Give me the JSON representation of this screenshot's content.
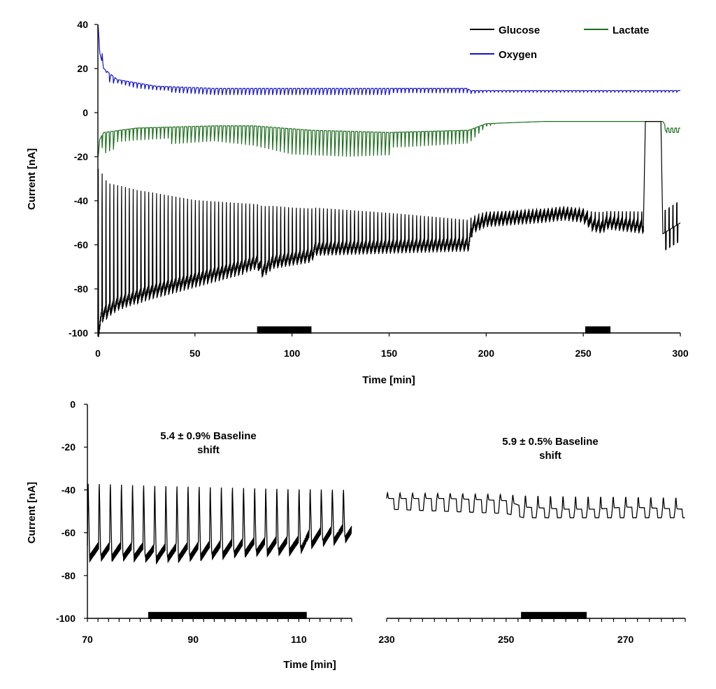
{
  "colors": {
    "glucose": "#000000",
    "lactate": "#1e6e1e",
    "oxygen": "#1414c8",
    "bar": "#000000"
  },
  "chart_data": [
    {
      "type": "line",
      "xlabel": "Time [min]",
      "ylabel": "Current [nA]",
      "xlim": [
        0,
        300
      ],
      "ylim": [
        -100,
        40
      ],
      "xticks": [
        0,
        50,
        100,
        150,
        200,
        250,
        300
      ],
      "yticks": [
        40,
        20,
        0,
        -20,
        -40,
        -60,
        -80,
        -100
      ],
      "legend": "top-right",
      "series": [
        {
          "name": "Glucose",
          "color": "#000000",
          "baseline": [
            [
              0,
              -98
            ],
            [
              2,
              -90
            ],
            [
              10,
              -85
            ],
            [
              25,
              -80
            ],
            [
              50,
              -74
            ],
            [
              75,
              -68
            ],
            [
              82,
              -66
            ],
            [
              85,
              -70
            ],
            [
              90,
              -66
            ],
            [
              110,
              -63
            ],
            [
              112,
              -60
            ],
            [
              150,
              -59
            ],
            [
              191,
              -58
            ],
            [
              193,
              -50
            ],
            [
              200,
              -47
            ],
            [
              230,
              -45
            ],
            [
              240,
              -44
            ],
            [
              250,
              -45
            ],
            [
              255,
              -49
            ],
            [
              260,
              -50
            ],
            [
              262,
              -48
            ],
            [
              281,
              -50
            ]
          ],
          "spike_top": [
            [
              0,
              -10
            ],
            [
              5,
              -20
            ],
            [
              20,
              -25
            ],
            [
              50,
              -32
            ],
            [
              100,
              -38
            ],
            [
              150,
              -42
            ],
            [
              191,
              -46
            ],
            [
              200,
              -44
            ],
            [
              281,
              -43
            ]
          ],
          "spike_period_min": 2.0,
          "spike_end_min": 191,
          "plateau": [
            [
              281,
              -50
            ],
            [
              282,
              -4
            ],
            [
              290,
              -4
            ],
            [
              291,
              -55
            ],
            [
              300,
              -50
            ]
          ]
        },
        {
          "name": "Lactate",
          "color": "#1e6e1e",
          "baseline": [
            [
              0,
              -20
            ],
            [
              1,
              -12
            ],
            [
              3,
              -9
            ],
            [
              20,
              -7
            ],
            [
              60,
              -6
            ],
            [
              80,
              -6
            ],
            [
              110,
              -8
            ],
            [
              150,
              -9
            ],
            [
              191,
              -8
            ],
            [
              200,
              -5
            ],
            [
              230,
              -4
            ],
            [
              280,
              -4
            ],
            [
              291,
              -4
            ],
            [
              293,
              -7
            ],
            [
              300,
              -7
            ]
          ],
          "dip_bottom": [
            [
              0,
              -20
            ],
            [
              10,
              -16
            ],
            [
              60,
              -13
            ],
            [
              80,
              -15
            ],
            [
              100,
              -19
            ],
            [
              130,
              -20
            ],
            [
              160,
              -19
            ],
            [
              191,
              -17
            ],
            [
              200,
              -7
            ],
            [
              205,
              -5
            ]
          ]
        },
        {
          "name": "Oxygen",
          "color": "#1414c8",
          "baseline": [
            [
              0,
              40
            ],
            [
              1,
              27
            ],
            [
              3,
              20
            ],
            [
              10,
              15
            ],
            [
              30,
              12
            ],
            [
              60,
              11
            ],
            [
              120,
              11
            ],
            [
              190,
              11
            ],
            [
              192,
              10
            ],
            [
              300,
              10
            ]
          ],
          "dip_bottom": [
            [
              0,
              40
            ],
            [
              5,
              14
            ],
            [
              20,
              10
            ],
            [
              60,
              8
            ],
            [
              190,
              8
            ],
            [
              193,
              8
            ],
            [
              200,
              9
            ],
            [
              300,
              9
            ]
          ]
        }
      ],
      "bars": [
        [
          82,
          110
        ],
        [
          251,
          264
        ]
      ]
    },
    {
      "type": "line",
      "ylabel": "Current [nA]",
      "xlabel": "Time [min]",
      "ylim": [
        -100,
        0
      ],
      "yticks": [
        0,
        -20,
        -40,
        -60,
        -80,
        -100
      ],
      "panels": [
        {
          "xlim": [
            70,
            120
          ],
          "xticks": [
            70,
            90,
            110
          ],
          "annotation": [
            "5.4 ± 0.9% Baseline",
            "shift"
          ],
          "bar": [
            81.5,
            111.5
          ],
          "series": {
            "name": "Glucose",
            "baseline": [
              [
                70,
                -66
              ],
              [
                80,
                -66
              ],
              [
                82,
                -67
              ],
              [
                90,
                -66
              ],
              [
                100,
                -64
              ],
              [
                110,
                -63
              ],
              [
                112,
                -60
              ],
              [
                120,
                -57
              ]
            ],
            "spike_top": [
              [
                70,
                -34
              ],
              [
                120,
                -38
              ]
            ],
            "spike_period_min": 2.1
          }
        },
        {
          "xlim": [
            230,
            280
          ],
          "xticks": [
            230,
            250,
            270
          ],
          "annotation": [
            "5.9 ± 0.5% Baseline",
            "shift"
          ],
          "bar": [
            252.5,
            263.5
          ],
          "series": {
            "name": "Glucose",
            "baseline": [
              [
                230,
                -44
              ],
              [
                240,
                -44
              ],
              [
                250,
                -45
              ],
              [
                253,
                -48
              ],
              [
                260,
                -49
              ],
              [
                265,
                -49
              ],
              [
                270,
                -48
              ],
              [
                280,
                -49
              ]
            ],
            "dip_bottom": [
              [
                230,
                -49
              ],
              [
                240,
                -50
              ],
              [
                250,
                -51
              ],
              [
                253,
                -53
              ],
              [
                280,
                -53
              ]
            ],
            "spike_top": [
              [
                230,
                -41
              ],
              [
                280,
                -43
              ]
            ],
            "spike_period_min": 2.1
          }
        }
      ]
    }
  ]
}
